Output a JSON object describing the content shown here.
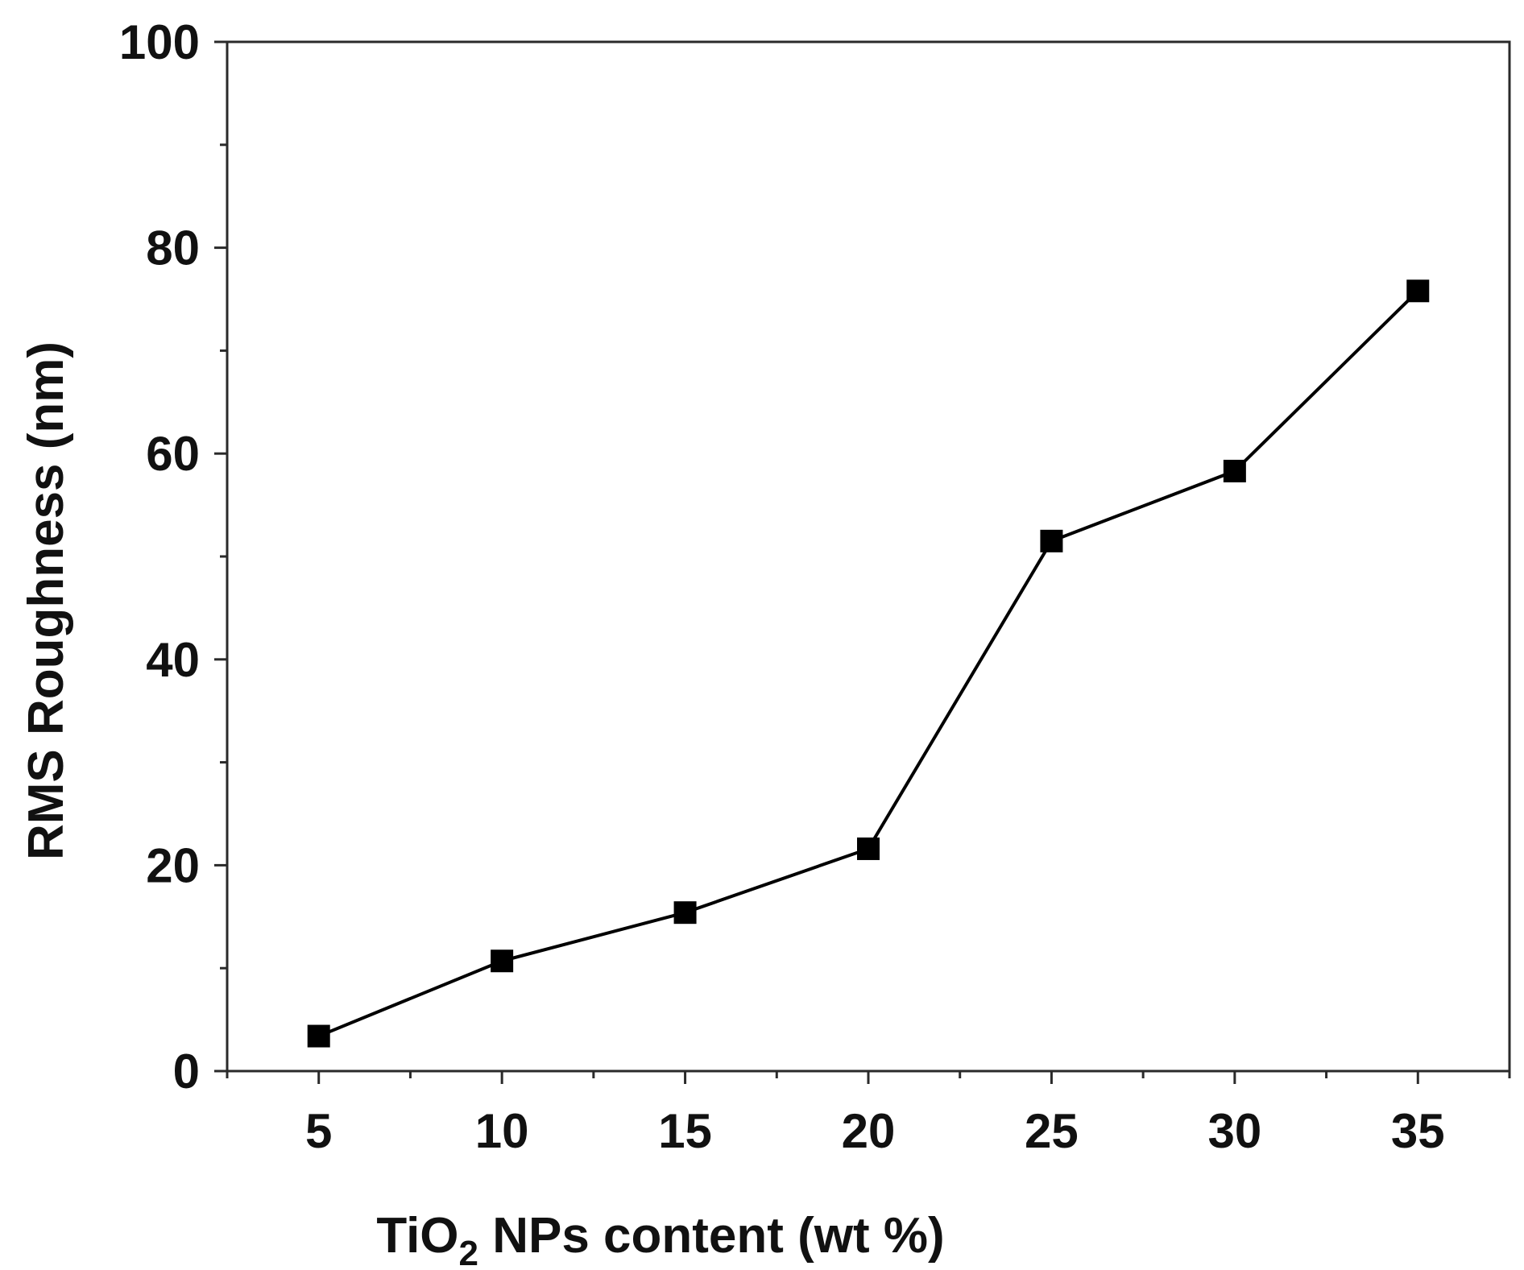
{
  "chart_data": {
    "type": "line",
    "title": "",
    "xlabel": "TiO",
    "xlabel_sub": "2",
    "xlabel_rest": " NPs content (wt %)",
    "ylabel": "RMS Roughness (nm)",
    "xlim": [
      2.5,
      37.5
    ],
    "ylim": [
      0,
      100
    ],
    "x_ticks": [
      5,
      10,
      15,
      20,
      25,
      30,
      35
    ],
    "y_ticks": [
      0,
      20,
      40,
      60,
      80,
      100
    ],
    "grid": false,
    "legend": "none",
    "series": [
      {
        "x": [
          5,
          10,
          15,
          20,
          25,
          30,
          35
        ],
        "values": [
          3.4,
          10.7,
          15.4,
          21.6,
          51.5,
          58.3,
          75.8
        ],
        "marker": "square",
        "color": "#000000"
      }
    ]
  }
}
